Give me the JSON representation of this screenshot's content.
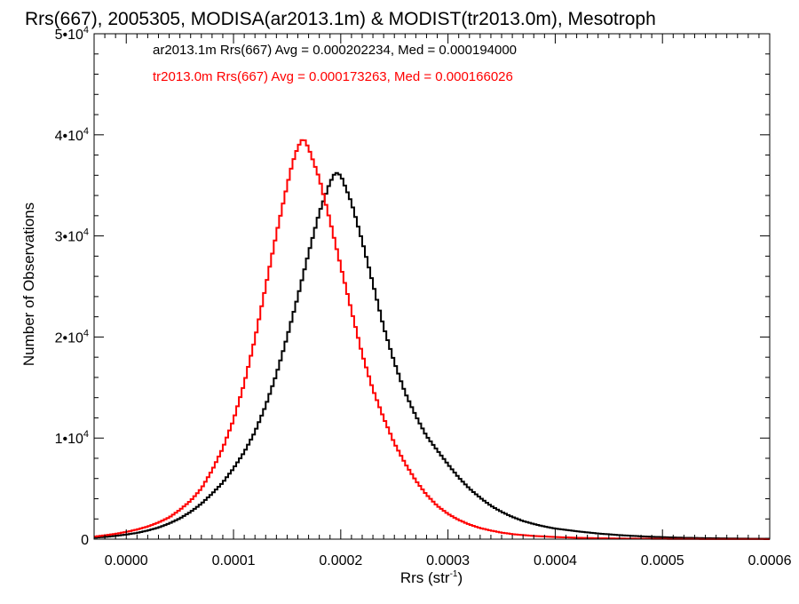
{
  "chart_data": {
    "type": "line",
    "step": true,
    "title": "Rrs(667), 2005305, MODISA(ar2013.1m) & MODIST(tr2013.0m), Mesotroph",
    "xlabel": "Rrs (str",
    "xlabel_sup": "-1",
    "xlabel_close": ")",
    "ylabel": "Number of Observations",
    "xlim": [
      -3e-05,
      0.0006
    ],
    "ylim": [
      0,
      50000
    ],
    "x_ticks": [
      0.0,
      0.0001,
      0.0002,
      0.0003,
      0.0004,
      0.0005,
      0.0006
    ],
    "x_tick_labels": [
      "0.0000",
      "0.0001",
      "0.0002",
      "0.0003",
      "0.0004",
      "0.0005",
      "0.0006"
    ],
    "y_ticks": [
      {
        "value": 0,
        "mantissa": "0",
        "sup": ""
      },
      {
        "value": 10000,
        "mantissa": "1•10",
        "sup": "4"
      },
      {
        "value": 20000,
        "mantissa": "2•10",
        "sup": "4"
      },
      {
        "value": 30000,
        "mantissa": "3•10",
        "sup": "4"
      },
      {
        "value": 40000,
        "mantissa": "4•10",
        "sup": "4"
      },
      {
        "value": 50000,
        "mantissa": "5•10",
        "sup": "4"
      }
    ],
    "grid": false,
    "legend_placement": "top-left",
    "series": [
      {
        "name": "ar2013.1m",
        "legend_text": "ar2013.1m Rrs(667) Avg = 0.000202234, Med = 0.000194000",
        "color": "#000000",
        "points": [
          [
            -3e-05,
            150
          ],
          [
            -2e-05,
            220
          ],
          [
            -1e-05,
            320
          ],
          [
            0.0,
            450
          ],
          [
            1e-05,
            620
          ],
          [
            2e-05,
            850
          ],
          [
            3e-05,
            1150
          ],
          [
            4e-05,
            1550
          ],
          [
            5e-05,
            2050
          ],
          [
            6e-05,
            2700
          ],
          [
            7e-05,
            3500
          ],
          [
            8e-05,
            4500
          ],
          [
            9e-05,
            5600
          ],
          [
            0.0001,
            7000
          ],
          [
            0.00011,
            8600
          ],
          [
            0.00012,
            10600
          ],
          [
            0.00013,
            13200
          ],
          [
            0.00014,
            16300
          ],
          [
            0.00015,
            20000
          ],
          [
            0.00016,
            24000
          ],
          [
            0.00017,
            28300
          ],
          [
            0.00018,
            32300
          ],
          [
            0.00019,
            35300
          ],
          [
            0.000195,
            36300
          ],
          [
            0.0002,
            36000
          ],
          [
            0.00021,
            33300
          ],
          [
            0.00022,
            29500
          ],
          [
            0.00023,
            25300
          ],
          [
            0.00024,
            21000
          ],
          [
            0.00025,
            17500
          ],
          [
            0.00026,
            14500
          ],
          [
            0.00027,
            12200
          ],
          [
            0.00028,
            10200
          ],
          [
            0.00029,
            8800
          ],
          [
            0.0003,
            7400
          ],
          [
            0.00031,
            6100
          ],
          [
            0.00032,
            5000
          ],
          [
            0.00033,
            4100
          ],
          [
            0.00034,
            3300
          ],
          [
            0.00035,
            2700
          ],
          [
            0.00036,
            2200
          ],
          [
            0.00037,
            1800
          ],
          [
            0.00038,
            1500
          ],
          [
            0.00039,
            1250
          ],
          [
            0.0004,
            1050
          ],
          [
            0.00042,
            780
          ],
          [
            0.00044,
            560
          ],
          [
            0.00046,
            400
          ],
          [
            0.00048,
            280
          ],
          [
            0.0005,
            200
          ],
          [
            0.00052,
            140
          ],
          [
            0.00054,
            100
          ],
          [
            0.00056,
            70
          ],
          [
            0.00058,
            50
          ],
          [
            0.0006,
            40
          ]
        ]
      },
      {
        "name": "tr2013.0m",
        "legend_text": "tr2013.0m Rrs(667) Avg = 0.000173263, Med = 0.000166026",
        "color": "#ff0000",
        "points": [
          [
            -3e-05,
            250
          ],
          [
            -2e-05,
            380
          ],
          [
            -1e-05,
            520
          ],
          [
            0.0,
            720
          ],
          [
            1e-05,
            950
          ],
          [
            2e-05,
            1250
          ],
          [
            3e-05,
            1650
          ],
          [
            4e-05,
            2150
          ],
          [
            5e-05,
            2900
          ],
          [
            6e-05,
            3800
          ],
          [
            7e-05,
            5000
          ],
          [
            8e-05,
            6800
          ],
          [
            9e-05,
            9000
          ],
          [
            0.0001,
            11800
          ],
          [
            0.00011,
            15400
          ],
          [
            0.00012,
            19800
          ],
          [
            0.00013,
            25000
          ],
          [
            0.00014,
            30200
          ],
          [
            0.00015,
            35000
          ],
          [
            0.000155,
            37200
          ],
          [
            0.00016,
            38800
          ],
          [
            0.000165,
            39700
          ],
          [
            0.00017,
            38700
          ],
          [
            0.00018,
            35700
          ],
          [
            0.00019,
            31500
          ],
          [
            0.0002,
            27000
          ],
          [
            0.00021,
            22600
          ],
          [
            0.00022,
            18300
          ],
          [
            0.00023,
            14800
          ],
          [
            0.00024,
            12000
          ],
          [
            0.00025,
            9500
          ],
          [
            0.00026,
            7500
          ],
          [
            0.00027,
            5800
          ],
          [
            0.00028,
            4400
          ],
          [
            0.00029,
            3300
          ],
          [
            0.0003,
            2500
          ],
          [
            0.00031,
            1900
          ],
          [
            0.00032,
            1450
          ],
          [
            0.00033,
            1100
          ],
          [
            0.00034,
            850
          ],
          [
            0.00035,
            650
          ],
          [
            0.00036,
            500
          ],
          [
            0.00038,
            320
          ],
          [
            0.0004,
            210
          ],
          [
            0.00042,
            140
          ],
          [
            0.00044,
            95
          ],
          [
            0.00046,
            65
          ],
          [
            0.00048,
            45
          ],
          [
            0.0005,
            30
          ],
          [
            0.00052,
            20
          ],
          [
            0.00056,
            10
          ],
          [
            0.0006,
            5
          ]
        ]
      }
    ]
  }
}
